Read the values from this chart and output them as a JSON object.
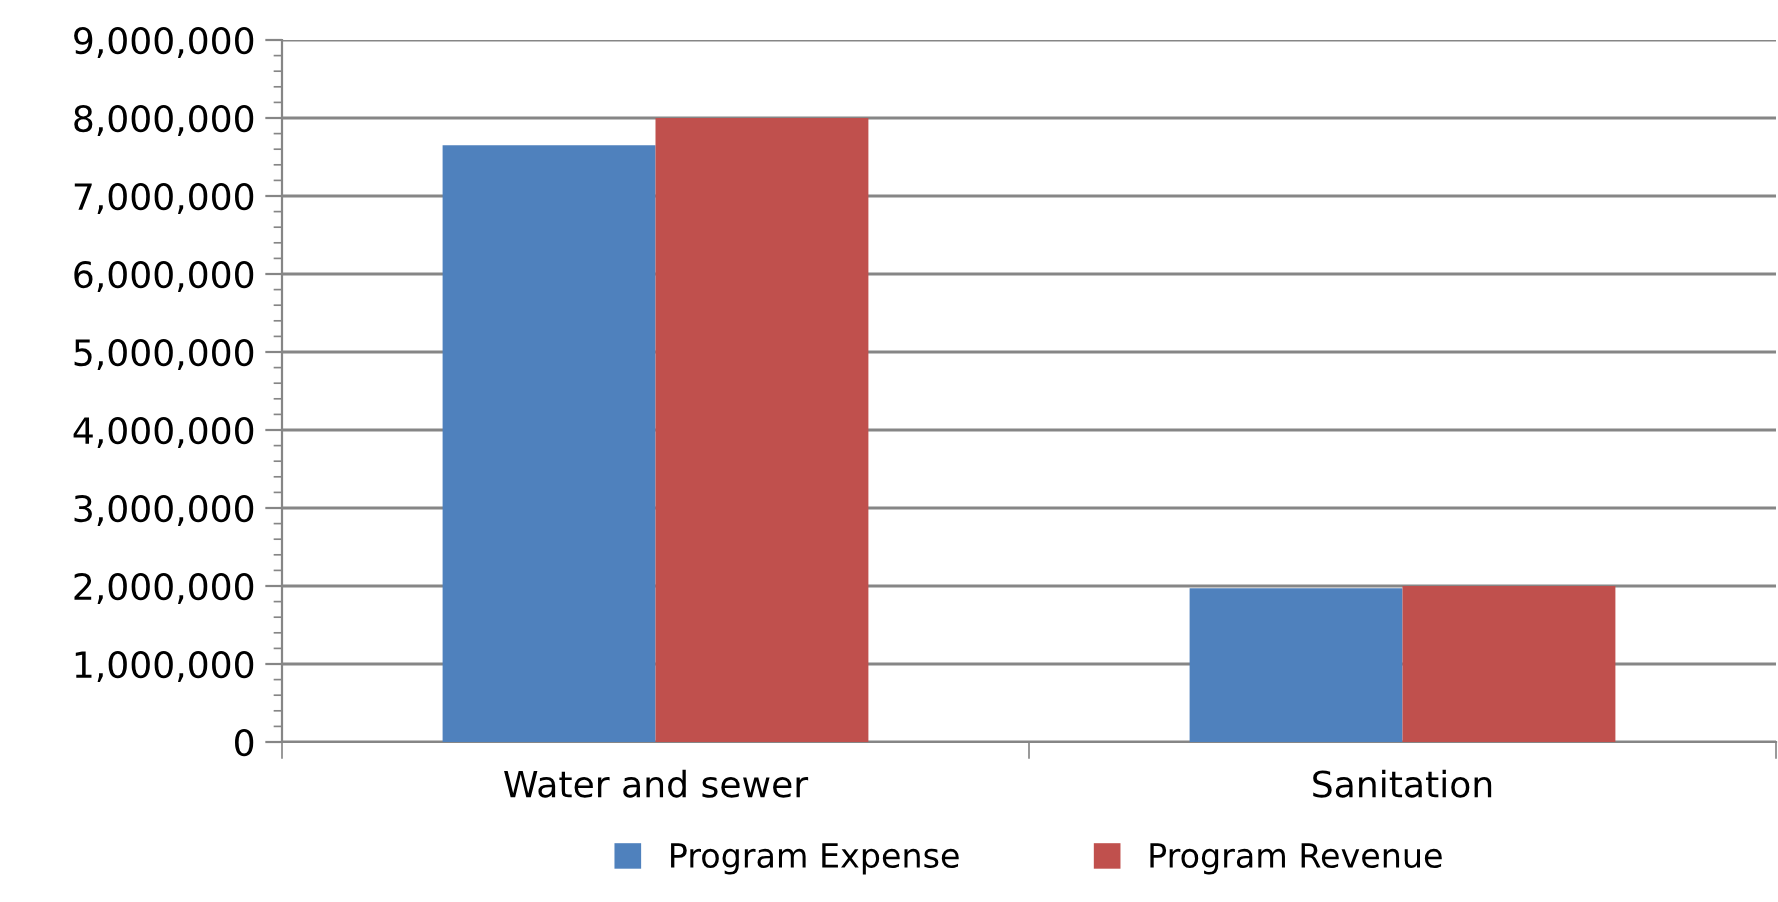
{
  "chart_data": {
    "type": "bar",
    "categories": [
      "Water and sewer",
      "Sanitation"
    ],
    "series": [
      {
        "name": "Program Expense",
        "color": "#4f81bd",
        "values": [
          7650000,
          1970000
        ]
      },
      {
        "name": "Program Revenue",
        "color": "#c0504d",
        "values": [
          8000000,
          2000000
        ]
      }
    ],
    "ylim": [
      0,
      9000000
    ],
    "yticks": [
      {
        "value": 0,
        "label": "0"
      },
      {
        "value": 1000000,
        "label": "1,000,000"
      },
      {
        "value": 2000000,
        "label": "2,000,000"
      },
      {
        "value": 3000000,
        "label": "3,000,000"
      },
      {
        "value": 4000000,
        "label": "4,000,000"
      },
      {
        "value": 5000000,
        "label": "5,000,000"
      },
      {
        "value": 6000000,
        "label": "6,000,000"
      },
      {
        "value": 7000000,
        "label": "7,000,000"
      },
      {
        "value": 8000000,
        "label": "8,000,000"
      },
      {
        "value": 9000000,
        "label": "9,000,000"
      }
    ],
    "grid": "y",
    "legend": "bottom"
  }
}
